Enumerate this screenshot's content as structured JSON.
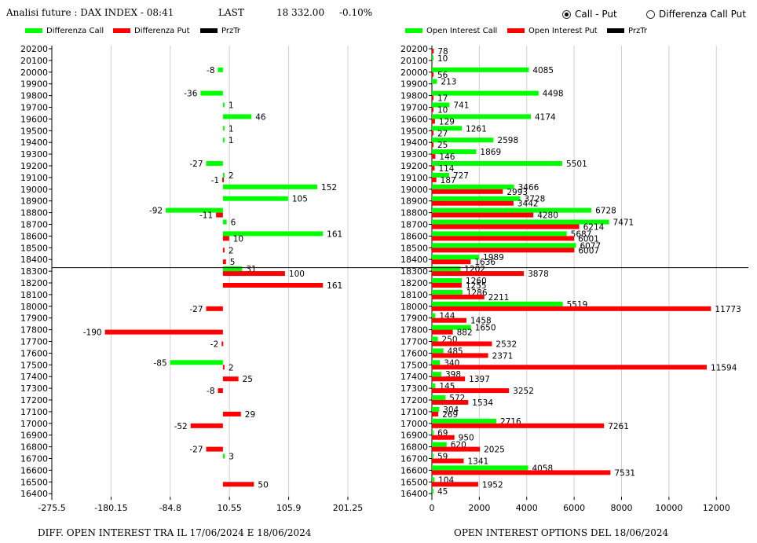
{
  "header": {
    "title": "Analisi future : DAX INDEX - 08:41",
    "last_label": "LAST",
    "last_value": "18 332.00",
    "change": "-0.10%"
  },
  "mode": {
    "options": [
      {
        "label": "Call - Put",
        "selected": true
      },
      {
        "label": "Differenza Call Put",
        "selected": false
      }
    ]
  },
  "colors": {
    "call": "#00ff00",
    "put": "#ff0000",
    "przTr": "#000000",
    "grid": "#d0d0d0"
  },
  "left_legend": [
    {
      "label": "Differenza Call",
      "color": "#00ff00"
    },
    {
      "label": "Differenza Put",
      "color": "#ff0000"
    },
    {
      "label": "PrzTr",
      "color": "#000000"
    }
  ],
  "right_legend": [
    {
      "label": "Open Interest Call",
      "color": "#00ff00"
    },
    {
      "label": "Open Interest Put",
      "color": "#ff0000"
    },
    {
      "label": "PrzTr",
      "color": "#000000"
    }
  ],
  "left_title": "DIFF. OPEN INTEREST TRA IL 17/06/2024 E 18/06/2024",
  "right_title": "OPEN INTEREST OPTIONS DEL 18/06/2024",
  "chart_data": [
    {
      "type": "bar",
      "orientation": "horizontal",
      "categories": [
        "20200",
        "20100",
        "20000",
        "19900",
        "19800",
        "19700",
        "19600",
        "19500",
        "19400",
        "19300",
        "19200",
        "19100",
        "19000",
        "18900",
        "18800",
        "18700",
        "18600",
        "18500",
        "18400",
        "18300",
        "18200",
        "18100",
        "18000",
        "17900",
        "17800",
        "17700",
        "17600",
        "17500",
        "17400",
        "17300",
        "17200",
        "17100",
        "17000",
        "16900",
        "16800",
        "16700",
        "16600",
        "16500",
        "16400"
      ],
      "series": [
        {
          "name": "Differenza Call",
          "color": "#00ff00",
          "values": [
            null,
            null,
            -8,
            null,
            -36,
            1,
            46,
            1,
            1,
            null,
            -27,
            2,
            152,
            105,
            -92,
            6,
            161,
            null,
            null,
            31,
            null,
            null,
            null,
            null,
            null,
            null,
            null,
            -85,
            null,
            null,
            null,
            null,
            null,
            null,
            null,
            3,
            null,
            null,
            null
          ]
        },
        {
          "name": "Differenza Put",
          "color": "#ff0000",
          "values": [
            null,
            null,
            null,
            null,
            null,
            null,
            null,
            null,
            null,
            null,
            null,
            -1,
            null,
            null,
            -11,
            null,
            10,
            2,
            5,
            100,
            161,
            null,
            -27,
            null,
            -190,
            -2,
            null,
            2,
            25,
            -8,
            null,
            29,
            -52,
            null,
            -27,
            null,
            null,
            50,
            null
          ]
        }
      ],
      "xticks": [
        "-275.5",
        "-180.15",
        "-84.8",
        "10.55",
        "105.9",
        "201.25"
      ],
      "xlim": [
        -275.5,
        201.25
      ],
      "przTr_price": "18332",
      "title": "DIFF. OPEN INTEREST TRA IL 17/06/2024 E 18/06/2024"
    },
    {
      "type": "bar",
      "orientation": "horizontal",
      "categories": [
        "20200",
        "20100",
        "20000",
        "19900",
        "19800",
        "19700",
        "19600",
        "19500",
        "19400",
        "19300",
        "19200",
        "19100",
        "19000",
        "18900",
        "18800",
        "18700",
        "18600",
        "18500",
        "18400",
        "18300",
        "18200",
        "18100",
        "18000",
        "17900",
        "17800",
        "17700",
        "17600",
        "17500",
        "17400",
        "17300",
        "17200",
        "17100",
        "17000",
        "16900",
        "16800",
        "16700",
        "16600",
        "16500",
        "16400"
      ],
      "series": [
        {
          "name": "Open Interest Call",
          "color": "#00ff00",
          "values": [
            null,
            10,
            4085,
            213,
            4498,
            741,
            4174,
            1261,
            2598,
            1869,
            5501,
            727,
            3466,
            3728,
            6728,
            7471,
            5687,
            6077,
            1989,
            1202,
            1260,
            1286,
            5519,
            144,
            1650,
            250,
            485,
            340,
            398,
            145,
            572,
            304,
            2716,
            69,
            620,
            59,
            4058,
            104,
            45
          ]
        },
        {
          "name": "Open Interest Put",
          "color": "#ff0000",
          "values": [
            78,
            null,
            56,
            null,
            17,
            10,
            129,
            27,
            25,
            146,
            114,
            187,
            2993,
            3442,
            4280,
            6214,
            6001,
            6007,
            1636,
            3878,
            1255,
            2211,
            11773,
            1458,
            882,
            2532,
            2371,
            11594,
            1397,
            3252,
            1534,
            269,
            7261,
            950,
            2025,
            1341,
            7531,
            1952,
            null
          ]
        }
      ],
      "xticks": [
        "0",
        "2000",
        "4000",
        "6000",
        "8000",
        "10000",
        "12000"
      ],
      "xlim": [
        0,
        13350
      ],
      "przTr_price": "18332",
      "title": "OPEN INTEREST OPTIONS DEL 18/06/2024"
    }
  ]
}
